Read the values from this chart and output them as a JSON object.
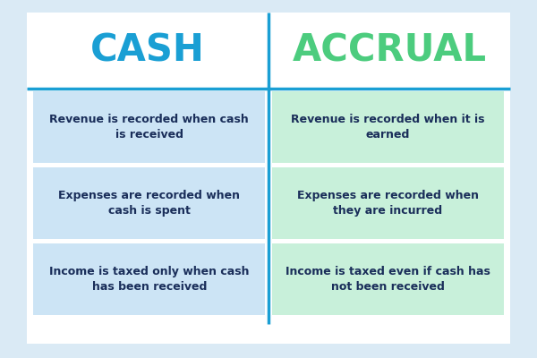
{
  "background_color": "#daeaf5",
  "card_bg_color": "#ffffff",
  "cash_color": "#1a9fd4",
  "accrual_color": "#4ccc7e",
  "cash_bg": "#cce4f5",
  "accrual_bg": "#c8f0da",
  "text_color": "#1a2e5a",
  "divider_color": "#1a9fd4",
  "header_line_color": "#1a9fd4",
  "cash_title": "CASH",
  "accrual_title": "ACCRUAL",
  "cash_rows": [
    "Revenue is recorded when cash\nis received",
    "Expenses are recorded when\ncash is spent",
    "Income is taxed only when cash\nhas been received"
  ],
  "accrual_rows": [
    "Revenue is recorded when it is\nearned",
    "Expenses are recorded when\nthey are incurred",
    "Income is taxed even if cash has\nnot been received"
  ],
  "fig_width": 6.0,
  "fig_height": 4.0,
  "dpi": 100
}
